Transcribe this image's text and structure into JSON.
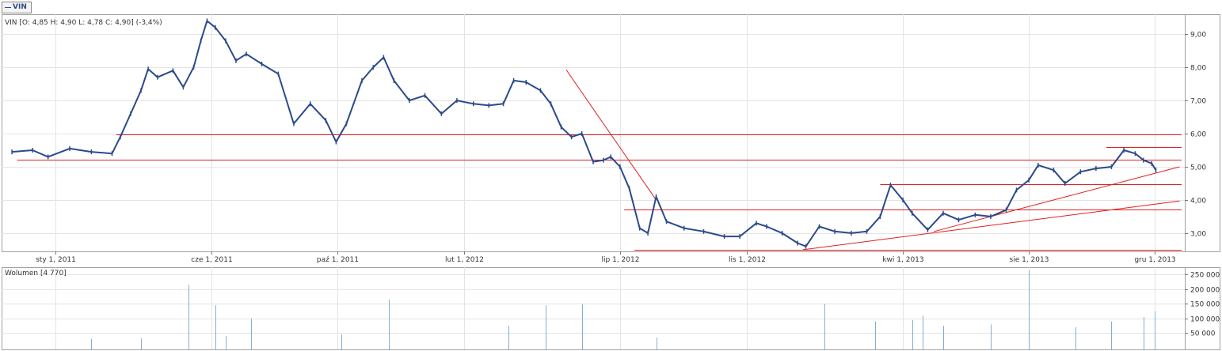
{
  "tab": {
    "label": "VIN"
  },
  "chart_data": [
    {
      "type": "line",
      "title": "VIN [O: 4,85  H: 4,90  L: 4,78  C: 4,90] (-3,4%)",
      "ylim": [
        2.45,
        9.6
      ],
      "y_ticks": [
        "3,00",
        "4,00",
        "5,00",
        "6,00",
        "7,00",
        "8,00",
        "9,00"
      ],
      "x_ticks": [
        {
          "label": "sty 1, 2011",
          "date": "2011-01-01"
        },
        {
          "label": "cze 1, 2011",
          "date": "2011-06-01"
        },
        {
          "label": "paź 1, 2011",
          "date": "2011-10-01"
        },
        {
          "label": "lut 1, 2012",
          "date": "2012-02-01"
        },
        {
          "label": "lip 1, 2012",
          "date": "2012-07-01"
        },
        {
          "label": "lis 1, 2012",
          "date": "2012-11-01"
        },
        {
          "label": "kwi 1, 2013",
          "date": "2013-04-01"
        },
        {
          "label": "sie 1, 2013",
          "date": "2013-08-01"
        },
        {
          "label": "gru 1, 2013",
          "date": "2013-12-01"
        }
      ],
      "x_range": [
        "2010-11-10",
        "2013-12-30"
      ],
      "grid": true,
      "series": [
        {
          "color": "#2b4a8b",
          "points": [
            [
              "2010-11-20",
              5.45
            ],
            [
              "2010-12-10",
              5.5
            ],
            [
              "2010-12-25",
              5.3
            ],
            [
              "2011-01-15",
              5.55
            ],
            [
              "2011-02-05",
              5.45
            ],
            [
              "2011-02-25",
              5.4
            ],
            [
              "2011-03-05",
              5.9
            ],
            [
              "2011-03-15",
              6.6
            ],
            [
              "2011-03-25",
              7.3
            ],
            [
              "2011-04-01",
              7.95
            ],
            [
              "2011-04-10",
              7.7
            ],
            [
              "2011-04-25",
              7.9
            ],
            [
              "2011-05-05",
              7.4
            ],
            [
              "2011-05-15",
              8.0
            ],
            [
              "2011-05-22",
              8.8
            ],
            [
              "2011-05-28",
              9.4
            ],
            [
              "2011-06-05",
              9.2
            ],
            [
              "2011-06-15",
              8.8
            ],
            [
              "2011-06-25",
              8.2
            ],
            [
              "2011-07-05",
              8.4
            ],
            [
              "2011-07-20",
              8.1
            ],
            [
              "2011-08-05",
              7.8
            ],
            [
              "2011-08-20",
              6.3
            ],
            [
              "2011-09-05",
              6.9
            ],
            [
              "2011-09-20",
              6.4
            ],
            [
              "2011-09-30",
              5.75
            ],
            [
              "2011-10-10",
              6.3
            ],
            [
              "2011-10-25",
              7.6
            ],
            [
              "2011-11-05",
              8.0
            ],
            [
              "2011-11-15",
              8.3
            ],
            [
              "2011-11-25",
              7.6
            ],
            [
              "2011-12-10",
              7.0
            ],
            [
              "2011-12-25",
              7.15
            ],
            [
              "2012-01-10",
              6.6
            ],
            [
              "2012-01-25",
              7.0
            ],
            [
              "2012-02-10",
              6.9
            ],
            [
              "2012-02-25",
              6.85
            ],
            [
              "2012-03-10",
              6.9
            ],
            [
              "2012-03-20",
              7.6
            ],
            [
              "2012-04-01",
              7.55
            ],
            [
              "2012-04-15",
              7.3
            ],
            [
              "2012-04-25",
              6.9
            ],
            [
              "2012-05-05",
              6.2
            ],
            [
              "2012-05-15",
              5.9
            ],
            [
              "2012-05-25",
              6.0
            ],
            [
              "2012-06-05",
              5.15
            ],
            [
              "2012-06-15",
              5.2
            ],
            [
              "2012-06-22",
              5.3
            ],
            [
              "2012-07-01",
              5.0
            ],
            [
              "2012-07-10",
              4.35
            ],
            [
              "2012-07-20",
              3.15
            ],
            [
              "2012-07-28",
              3.0
            ],
            [
              "2012-08-05",
              4.1
            ],
            [
              "2012-08-15",
              3.35
            ],
            [
              "2012-09-01",
              3.15
            ],
            [
              "2012-09-20",
              3.05
            ],
            [
              "2012-10-10",
              2.9
            ],
            [
              "2012-10-25",
              2.9
            ],
            [
              "2012-11-10",
              3.3
            ],
            [
              "2012-11-20",
              3.2
            ],
            [
              "2012-12-05",
              3.0
            ],
            [
              "2012-12-20",
              2.7
            ],
            [
              "2012-12-28",
              2.6
            ],
            [
              "2013-01-10",
              3.2
            ],
            [
              "2013-01-25",
              3.05
            ],
            [
              "2013-02-10",
              3.0
            ],
            [
              "2013-02-25",
              3.05
            ],
            [
              "2013-03-10",
              3.5
            ],
            [
              "2013-03-20",
              4.45
            ],
            [
              "2013-04-01",
              4.0
            ],
            [
              "2013-04-10",
              3.6
            ],
            [
              "2013-04-25",
              3.1
            ],
            [
              "2013-05-10",
              3.6
            ],
            [
              "2013-05-25",
              3.4
            ],
            [
              "2013-06-10",
              3.55
            ],
            [
              "2013-06-25",
              3.5
            ],
            [
              "2013-07-10",
              3.7
            ],
            [
              "2013-07-20",
              4.3
            ],
            [
              "2013-08-01",
              4.6
            ],
            [
              "2013-08-10",
              5.05
            ],
            [
              "2013-08-25",
              4.9
            ],
            [
              "2013-09-05",
              4.5
            ],
            [
              "2013-09-20",
              4.85
            ],
            [
              "2013-10-05",
              4.95
            ],
            [
              "2013-10-20",
              5.0
            ],
            [
              "2013-11-01",
              5.5
            ],
            [
              "2013-11-12",
              5.4
            ],
            [
              "2013-11-20",
              5.2
            ],
            [
              "2013-11-28",
              5.1
            ],
            [
              "2013-12-02",
              4.9
            ]
          ]
        }
      ],
      "annotations": [
        {
          "type": "hline",
          "y": 5.98,
          "x_start": "2011-03-01",
          "color": "#e02020"
        },
        {
          "type": "hline",
          "y": 5.22,
          "x_start": "2010-11-25",
          "color": "#e02020"
        },
        {
          "type": "hline",
          "y": 3.72,
          "x_start": "2012-07-05",
          "color": "#e02020"
        },
        {
          "type": "hline",
          "y": 2.5,
          "x_start": "2012-07-15",
          "color": "#e02020"
        },
        {
          "type": "hline",
          "y": 4.48,
          "x_start": "2013-03-10",
          "color": "#e02020"
        },
        {
          "type": "hline",
          "y": 5.6,
          "x_start": "2013-10-15",
          "color": "#e02020"
        },
        {
          "type": "trend",
          "from": [
            "2012-05-10",
            7.92
          ],
          "to": [
            "2012-08-05",
            4.0
          ],
          "color": "#e02020"
        },
        {
          "type": "trend",
          "from": [
            "2012-12-25",
            2.5
          ],
          "to": [
            "2013-12-25",
            3.97
          ],
          "color": "#e02020"
        },
        {
          "type": "trend",
          "from": [
            "2013-05-01",
            3.05
          ],
          "to": [
            "2013-12-25",
            5.0
          ],
          "color": "#e02020"
        }
      ]
    },
    {
      "type": "bar",
      "title": "Wolumen [4 770]",
      "ylim": [
        0,
        275000
      ],
      "y_ticks": [
        "50 000",
        "100 000",
        "150 000",
        "200 000",
        "250 000"
      ],
      "color": "#7fb0d6",
      "bars": [
        [
          "2011-02-05",
          30000
        ],
        [
          "2011-03-25",
          32000
        ],
        [
          "2011-05-10",
          215000
        ],
        [
          "2011-06-05",
          145000
        ],
        [
          "2011-06-15",
          40000
        ],
        [
          "2011-07-10",
          100000
        ],
        [
          "2011-10-05",
          45000
        ],
        [
          "2011-11-20",
          165000
        ],
        [
          "2012-03-15",
          75000
        ],
        [
          "2012-04-20",
          145000
        ],
        [
          "2012-05-25",
          150000
        ],
        [
          "2012-08-05",
          35000
        ],
        [
          "2013-01-15",
          150000
        ],
        [
          "2013-03-05",
          90000
        ],
        [
          "2013-04-10",
          95000
        ],
        [
          "2013-04-20",
          110000
        ],
        [
          "2013-05-10",
          75000
        ],
        [
          "2013-06-25",
          80000
        ],
        [
          "2013-08-01",
          265000
        ],
        [
          "2013-09-15",
          70000
        ],
        [
          "2013-10-20",
          90000
        ],
        [
          "2013-11-20",
          105000
        ],
        [
          "2013-12-01",
          125000
        ]
      ]
    }
  ]
}
